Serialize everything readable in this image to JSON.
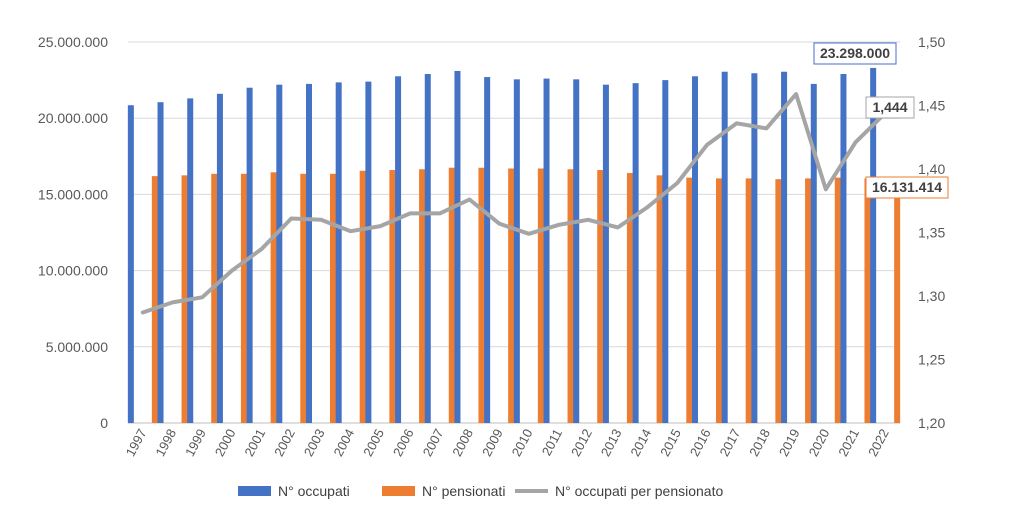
{
  "chart_data": {
    "type": "bar",
    "title": "",
    "xlabel": "",
    "ylabel": "",
    "categories": [
      "1997",
      "1998",
      "1999",
      "2000",
      "2001",
      "2002",
      "2003",
      "2004",
      "2005",
      "2006",
      "2007",
      "2008",
      "2009",
      "2010",
      "2011",
      "2012",
      "2013",
      "2014",
      "2015",
      "2016",
      "2017",
      "2018",
      "2019",
      "2020",
      "2021",
      "2022"
    ],
    "ylim": [
      0,
      25000000
    ],
    "y_ticks": [
      "0",
      "5.000.000",
      "10.000.000",
      "15.000.000",
      "20.000.000",
      "25.000.000"
    ],
    "y2lim": [
      1.2,
      1.5
    ],
    "y2_ticks": [
      "1,20",
      "1,25",
      "1,30",
      "1,35",
      "1,40",
      "1,45",
      "1,50"
    ],
    "grid": true,
    "legend_position": "bottom",
    "series": [
      {
        "name": "N° occupati",
        "type": "bar",
        "axis": "left",
        "color": "#4472C4",
        "values": [
          20850000,
          21050000,
          21300000,
          21600000,
          22000000,
          22200000,
          22250000,
          22350000,
          22400000,
          22750000,
          22900000,
          23100000,
          22700000,
          22550000,
          22600000,
          22550000,
          22200000,
          22300000,
          22500000,
          22750000,
          23050000,
          22950000,
          23050000,
          22250000,
          22900000,
          23298000
        ]
      },
      {
        "name": "N° pensionati",
        "type": "bar",
        "axis": "left",
        "color": "#ED7D31",
        "values": [
          16200000,
          16250000,
          16350000,
          16350000,
          16450000,
          16350000,
          16350000,
          16550000,
          16600000,
          16650000,
          16750000,
          16750000,
          16700000,
          16700000,
          16650000,
          16600000,
          16400000,
          16250000,
          16100000,
          16050000,
          16050000,
          16000000,
          16050000,
          16100000,
          16050000,
          16131414
        ]
      },
      {
        "name": "N° occupati per pensionato",
        "type": "line",
        "axis": "right",
        "color": "#A5A5A5",
        "values": [
          1.287,
          1.295,
          1.299,
          1.32,
          1.337,
          1.361,
          1.36,
          1.351,
          1.355,
          1.365,
          1.365,
          1.376,
          1.357,
          1.349,
          1.356,
          1.36,
          1.354,
          1.37,
          1.389,
          1.419,
          1.436,
          1.432,
          1.459,
          1.384,
          1.421,
          1.444
        ]
      }
    ],
    "annotations": [
      {
        "series": "N° occupati",
        "label": "23.298.000",
        "border_color": "#4472C4"
      },
      {
        "series": "N° occupati per pensionato",
        "label": "1,444",
        "border_color": "#A5A5A5"
      },
      {
        "series": "N° pensionati",
        "label": "16.131.414",
        "border_color": "#ED7D31"
      }
    ]
  }
}
